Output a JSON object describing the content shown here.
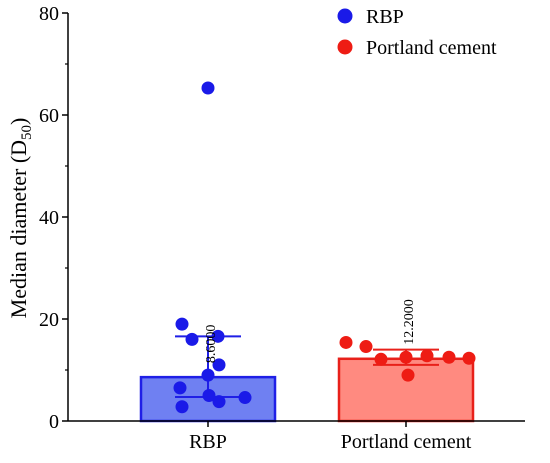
{
  "chart_data": {
    "type": "bar",
    "ylabel_main": "Median  diameter (D",
    "ylabel_sub": "50",
    "ylabel_close": ")",
    "ylim": [
      0,
      80
    ],
    "yticks": [
      0,
      20,
      40,
      60,
      80
    ],
    "categories": [
      "RBP",
      "Portland cement"
    ],
    "bars": [
      {
        "name": "RBP",
        "value": 8.6,
        "value_label": "8.6000",
        "error_low": 4.7,
        "error_high": 16.6,
        "fill": "#6f80f2",
        "stroke": "#1f1fe6",
        "point_color": "#1a1ae8",
        "points": [
          65.3,
          19.0,
          16.6,
          16.0,
          11.0,
          9.0,
          6.5,
          5.0,
          4.6,
          3.8,
          2.8
        ]
      },
      {
        "name": "Portland cement",
        "value": 12.2,
        "value_label": "12.2000",
        "error_low": 11.0,
        "error_high": 14.0,
        "fill": "#ff8a80",
        "stroke": "#e8201a",
        "point_color": "#ee1c14",
        "points": [
          15.4,
          14.6,
          12.8,
          12.5,
          12.5,
          12.3,
          12.1,
          9.0
        ]
      }
    ],
    "legend": [
      {
        "label": "RBP",
        "color": "#1a1ae8"
      },
      {
        "label": "Portland cement",
        "color": "#ee1c14"
      }
    ],
    "legend_position": "top-right"
  }
}
